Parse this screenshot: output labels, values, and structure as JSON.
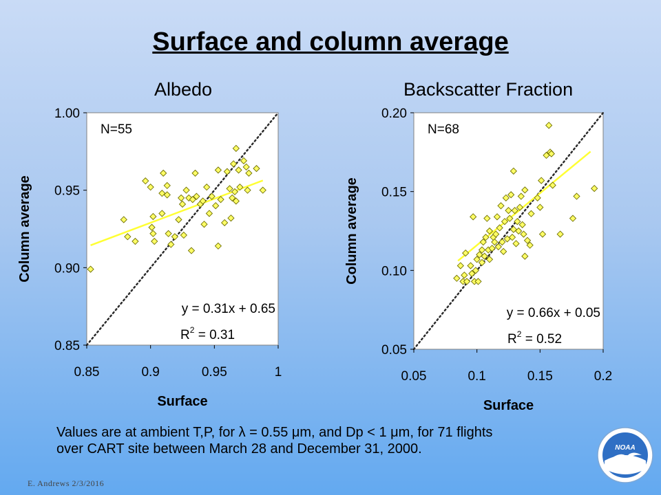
{
  "slide": {
    "title": "Surface and column average",
    "footnote_line1": "Values are at ambient T,P, for λ = 0.55 μm, and Dp < 1 μm, for 71  flights",
    "footnote_line2": "over CART site between March 28 and December 31, 2000.",
    "footer": "E. Andrews   2/3/2016",
    "logo_text": "NOAA",
    "background_top": "#c9dbf6",
    "background_bottom": "#63a9f0"
  },
  "chart_data": [
    {
      "type": "scatter",
      "title": "Albedo",
      "xlabel": "Surface",
      "ylabel": "Column average",
      "xlim": [
        0.85,
        1.0
      ],
      "ylim": [
        0.85,
        1.0
      ],
      "xticks": [
        "0.85",
        "0.9",
        "0.95",
        "1"
      ],
      "yticks": [
        "0.85",
        "0.90",
        "0.95",
        "1.00"
      ],
      "n_label": "N=55",
      "equation": "y = 0.31x + 0.65",
      "r2_label": "R",
      "r2_value": " = 0.31",
      "fit": {
        "slope": 0.31,
        "intercept": 0.65,
        "x_range": [
          0.853,
          0.988
        ]
      },
      "one_to_one_line": true,
      "point_color": "#ffff66",
      "fit_color": "#ffff33",
      "points": [
        [
          0.853,
          0.899
        ],
        [
          0.879,
          0.931
        ],
        [
          0.882,
          0.92
        ],
        [
          0.888,
          0.917
        ],
        [
          0.896,
          0.956
        ],
        [
          0.9,
          0.952
        ],
        [
          0.901,
          0.926
        ],
        [
          0.902,
          0.933
        ],
        [
          0.902,
          0.922
        ],
        [
          0.903,
          0.917
        ],
        [
          0.909,
          0.948
        ],
        [
          0.909,
          0.935
        ],
        [
          0.91,
          0.961
        ],
        [
          0.913,
          0.953
        ],
        [
          0.913,
          0.947
        ],
        [
          0.914,
          0.922
        ],
        [
          0.916,
          0.915
        ],
        [
          0.919,
          0.92
        ],
        [
          0.922,
          0.931
        ],
        [
          0.924,
          0.945
        ],
        [
          0.925,
          0.941
        ],
        [
          0.926,
          0.921
        ],
        [
          0.928,
          0.95
        ],
        [
          0.93,
          0.945
        ],
        [
          0.932,
          0.911
        ],
        [
          0.933,
          0.944
        ],
        [
          0.935,
          0.961
        ],
        [
          0.936,
          0.946
        ],
        [
          0.939,
          0.941
        ],
        [
          0.941,
          0.943
        ],
        [
          0.942,
          0.928
        ],
        [
          0.944,
          0.952
        ],
        [
          0.946,
          0.935
        ],
        [
          0.948,
          0.946
        ],
        [
          0.951,
          0.94
        ],
        [
          0.953,
          0.963
        ],
        [
          0.953,
          0.914
        ],
        [
          0.955,
          0.944
        ],
        [
          0.958,
          0.929
        ],
        [
          0.96,
          0.962
        ],
        [
          0.962,
          0.951
        ],
        [
          0.963,
          0.932
        ],
        [
          0.964,
          0.945
        ],
        [
          0.965,
          0.967
        ],
        [
          0.966,
          0.949
        ],
        [
          0.967,
          0.943
        ],
        [
          0.967,
          0.977
        ],
        [
          0.969,
          0.963
        ],
        [
          0.97,
          0.952
        ],
        [
          0.973,
          0.969
        ],
        [
          0.975,
          0.965
        ],
        [
          0.976,
          0.95
        ],
        [
          0.977,
          0.961
        ],
        [
          0.983,
          0.964
        ],
        [
          0.988,
          0.95
        ]
      ]
    },
    {
      "type": "scatter",
      "title": "Backscatter Fraction",
      "xlabel": "Surface",
      "ylabel": "Column average",
      "xlim": [
        0.05,
        0.2
      ],
      "ylim": [
        0.05,
        0.2
      ],
      "xticks": [
        "0.05",
        "0.1",
        "0.15",
        "0.2"
      ],
      "yticks": [
        "0.05",
        "0.10",
        "0.15",
        "0.20"
      ],
      "n_label": "N=68",
      "equation": "y = 0.66x + 0.05",
      "r2_label": "R",
      "r2_value": " = 0.52",
      "fit": {
        "slope": 0.66,
        "intercept": 0.05,
        "x_range": [
          0.085,
          0.19
        ]
      },
      "one_to_one_line": true,
      "point_color": "#ffff66",
      "fit_color": "#ffff33",
      "points": [
        [
          0.084,
          0.095
        ],
        [
          0.087,
          0.103
        ],
        [
          0.089,
          0.093
        ],
        [
          0.09,
          0.097
        ],
        [
          0.091,
          0.111
        ],
        [
          0.092,
          0.093
        ],
        [
          0.095,
          0.103
        ],
        [
          0.096,
          0.098
        ],
        [
          0.097,
          0.134
        ],
        [
          0.098,
          0.093
        ],
        [
          0.099,
          0.1
        ],
        [
          0.1,
          0.107
        ],
        [
          0.101,
          0.093
        ],
        [
          0.102,
          0.11
        ],
        [
          0.104,
          0.113
        ],
        [
          0.104,
          0.105
        ],
        [
          0.105,
          0.118
        ],
        [
          0.106,
          0.109
        ],
        [
          0.107,
          0.121
        ],
        [
          0.108,
          0.133
        ],
        [
          0.109,
          0.113
        ],
        [
          0.11,
          0.125
        ],
        [
          0.11,
          0.107
        ],
        [
          0.112,
          0.114
        ],
        [
          0.113,
          0.121
        ],
        [
          0.114,
          0.118
        ],
        [
          0.115,
          0.123
        ],
        [
          0.116,
          0.134
        ],
        [
          0.117,
          0.115
        ],
        [
          0.118,
          0.127
        ],
        [
          0.119,
          0.141
        ],
        [
          0.12,
          0.118
        ],
        [
          0.121,
          0.112
        ],
        [
          0.122,
          0.131
        ],
        [
          0.123,
          0.146
        ],
        [
          0.124,
          0.12
        ],
        [
          0.125,
          0.138
        ],
        [
          0.126,
          0.133
        ],
        [
          0.127,
          0.148
        ],
        [
          0.128,
          0.121
        ],
        [
          0.129,
          0.126
        ],
        [
          0.129,
          0.163
        ],
        [
          0.13,
          0.138
        ],
        [
          0.131,
          0.117
        ],
        [
          0.132,
          0.131
        ],
        [
          0.133,
          0.125
        ],
        [
          0.134,
          0.14
        ],
        [
          0.135,
          0.147
        ],
        [
          0.136,
          0.129
        ],
        [
          0.137,
          0.123
        ],
        [
          0.138,
          0.151
        ],
        [
          0.138,
          0.109
        ],
        [
          0.14,
          0.119
        ],
        [
          0.142,
          0.116
        ],
        [
          0.143,
          0.136
        ],
        [
          0.148,
          0.146
        ],
        [
          0.15,
          0.14
        ],
        [
          0.151,
          0.157
        ],
        [
          0.152,
          0.123
        ],
        [
          0.155,
          0.173
        ],
        [
          0.157,
          0.192
        ],
        [
          0.158,
          0.175
        ],
        [
          0.159,
          0.174
        ],
        [
          0.16,
          0.154
        ],
        [
          0.166,
          0.123
        ],
        [
          0.176,
          0.133
        ],
        [
          0.179,
          0.147
        ],
        [
          0.193,
          0.152
        ]
      ]
    }
  ]
}
